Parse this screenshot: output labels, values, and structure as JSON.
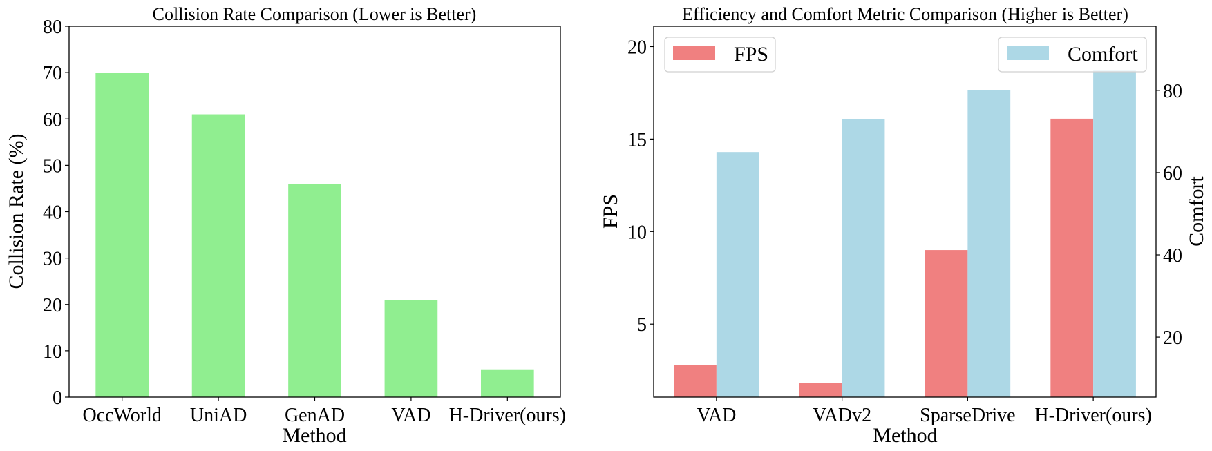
{
  "chart_data": [
    {
      "type": "bar",
      "title": "Collision Rate Comparison (Lower is Better)",
      "xlabel": "Method",
      "ylabel": "Collision Rate (%)",
      "categories": [
        "OccWorld",
        "UniAD",
        "GenAD",
        "VAD",
        "H-Driver(ours)"
      ],
      "values": [
        70,
        61,
        46,
        21,
        6
      ],
      "ylim": [
        0,
        80
      ],
      "yticks": [
        0,
        10,
        20,
        30,
        40,
        50,
        60,
        70,
        80
      ],
      "grid": false,
      "colors": {
        "bar": "#90ee90"
      }
    },
    {
      "type": "bar",
      "title": "Efficiency and Comfort Metric Comparison (Higher is Better)",
      "xlabel": "Method",
      "categories": [
        "VAD",
        "VADv2",
        "SparseDrive",
        "H-Driver(ours)"
      ],
      "series": [
        {
          "name": "FPS",
          "axis": "left",
          "values": [
            2.8,
            1.8,
            9.0,
            16.1
          ],
          "color": "#f08080"
        },
        {
          "name": "Comfort",
          "axis": "right",
          "values": [
            65,
            73,
            80,
            85
          ],
          "color": "#add8e6"
        }
      ],
      "left_axis": {
        "label": "FPS",
        "ylim": [
          1.05,
          21.1
        ],
        "yticks": [
          5,
          10,
          15,
          20
        ]
      },
      "right_axis": {
        "label": "Comfort",
        "ylim": [
          5.4,
          95.6
        ],
        "yticks": [
          20,
          40,
          60,
          80
        ]
      },
      "legends": [
        {
          "series": "FPS",
          "placement": "top-left"
        },
        {
          "series": "Comfort",
          "placement": "top-right"
        }
      ],
      "grid": false
    }
  ]
}
